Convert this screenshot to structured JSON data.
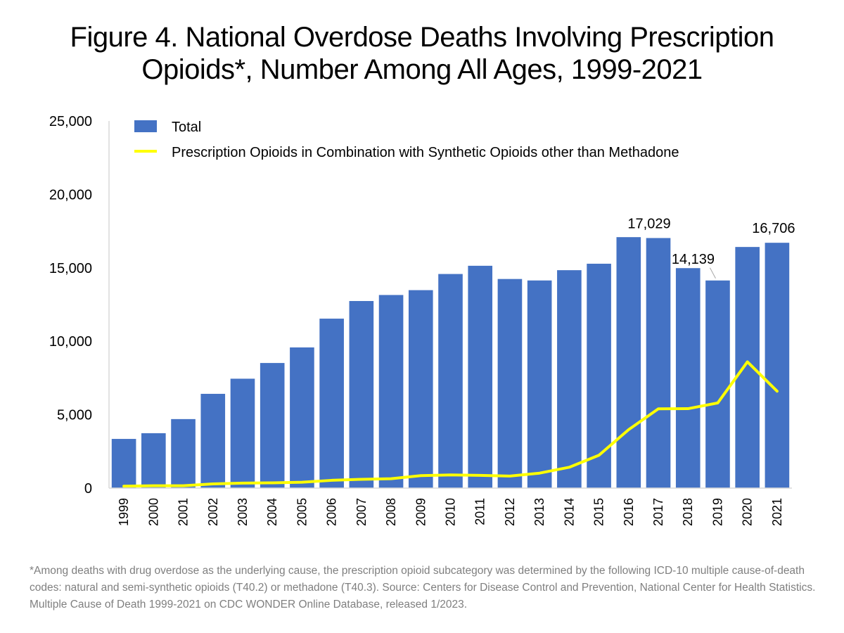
{
  "title_line1": "Figure 4. National Overdose Deaths Involving Prescription",
  "title_line2": "Opioids*, Number Among All Ages, 1999-2021",
  "footnote": "*Among deaths with drug overdose as the underlying cause, the prescription opioid subcategory was determined by the following ICD-10 multiple cause-of-death codes: natural and semi-synthetic opioids (T40.2) or methadone (T40.3). Source: Centers for Disease Control and Prevention, National Center for Health Statistics. Multiple Cause of Death 1999-2021 on CDC WONDER Online Database, released 1/2023.",
  "chart_data": {
    "type": "bar",
    "title": "Figure 4. National Overdose Deaths Involving Prescription Opioids*, Number Among All Ages, 1999-2021",
    "xlabel": "",
    "ylabel": "",
    "ylim": [
      0,
      25000
    ],
    "yticks": [
      0,
      5000,
      10000,
      15000,
      20000,
      25000
    ],
    "ytick_labels": [
      "0",
      "5,000",
      "10,000",
      "15,000",
      "20,000",
      "25,000"
    ],
    "grid": false,
    "legend_position": "top-left",
    "categories": [
      "1999",
      "2000",
      "2001",
      "2002",
      "2003",
      "2004",
      "2005",
      "2006",
      "2007",
      "2008",
      "2009",
      "2010",
      "2011",
      "2012",
      "2013",
      "2014",
      "2015",
      "2016",
      "2017",
      "2018",
      "2019",
      "2020",
      "2021"
    ],
    "series": [
      {
        "name": "Total",
        "type": "bar",
        "color": "#4472c4",
        "values": [
          3350,
          3740,
          4700,
          6420,
          7450,
          8520,
          9580,
          11540,
          12740,
          13150,
          13480,
          14580,
          15140,
          14240,
          14140,
          14840,
          15280,
          17090,
          17029,
          14980,
          14139,
          16420,
          16706
        ]
      },
      {
        "name": "Prescription Opioids in Combination with Synthetic Opioids other than Methadone",
        "type": "line",
        "color": "#ffff00",
        "values": [
          130,
          160,
          160,
          290,
          340,
          360,
          400,
          530,
          600,
          640,
          850,
          900,
          870,
          820,
          1020,
          1420,
          2240,
          3980,
          5400,
          5410,
          5800,
          8600,
          6600
        ]
      }
    ],
    "annotations": [
      {
        "category": "2017",
        "text": "17,029"
      },
      {
        "category": "2019",
        "text": "14,139"
      },
      {
        "category": "2021",
        "text": "16,706"
      }
    ]
  }
}
